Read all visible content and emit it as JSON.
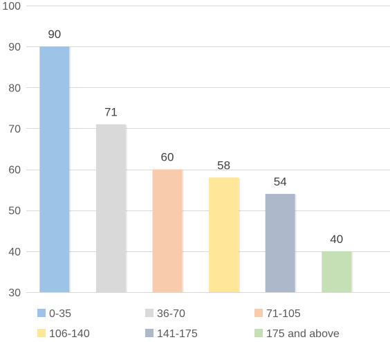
{
  "chart_data": {
    "type": "bar",
    "categories": [
      "0-35",
      "36-70",
      "71-105",
      "106-140",
      "141-175",
      "175 and above"
    ],
    "values": [
      90,
      71,
      60,
      58,
      54,
      40
    ],
    "colors": [
      "#9dc3e6",
      "#d9d9d9",
      "#f8cbad",
      "#ffe699",
      "#adb9ca",
      "#c5e0b4"
    ],
    "ylim": [
      30,
      100
    ],
    "yticks": [
      30,
      40,
      50,
      60,
      70,
      80,
      90,
      100
    ],
    "grid": true,
    "legend_position": "bottom",
    "data_labels": true
  }
}
